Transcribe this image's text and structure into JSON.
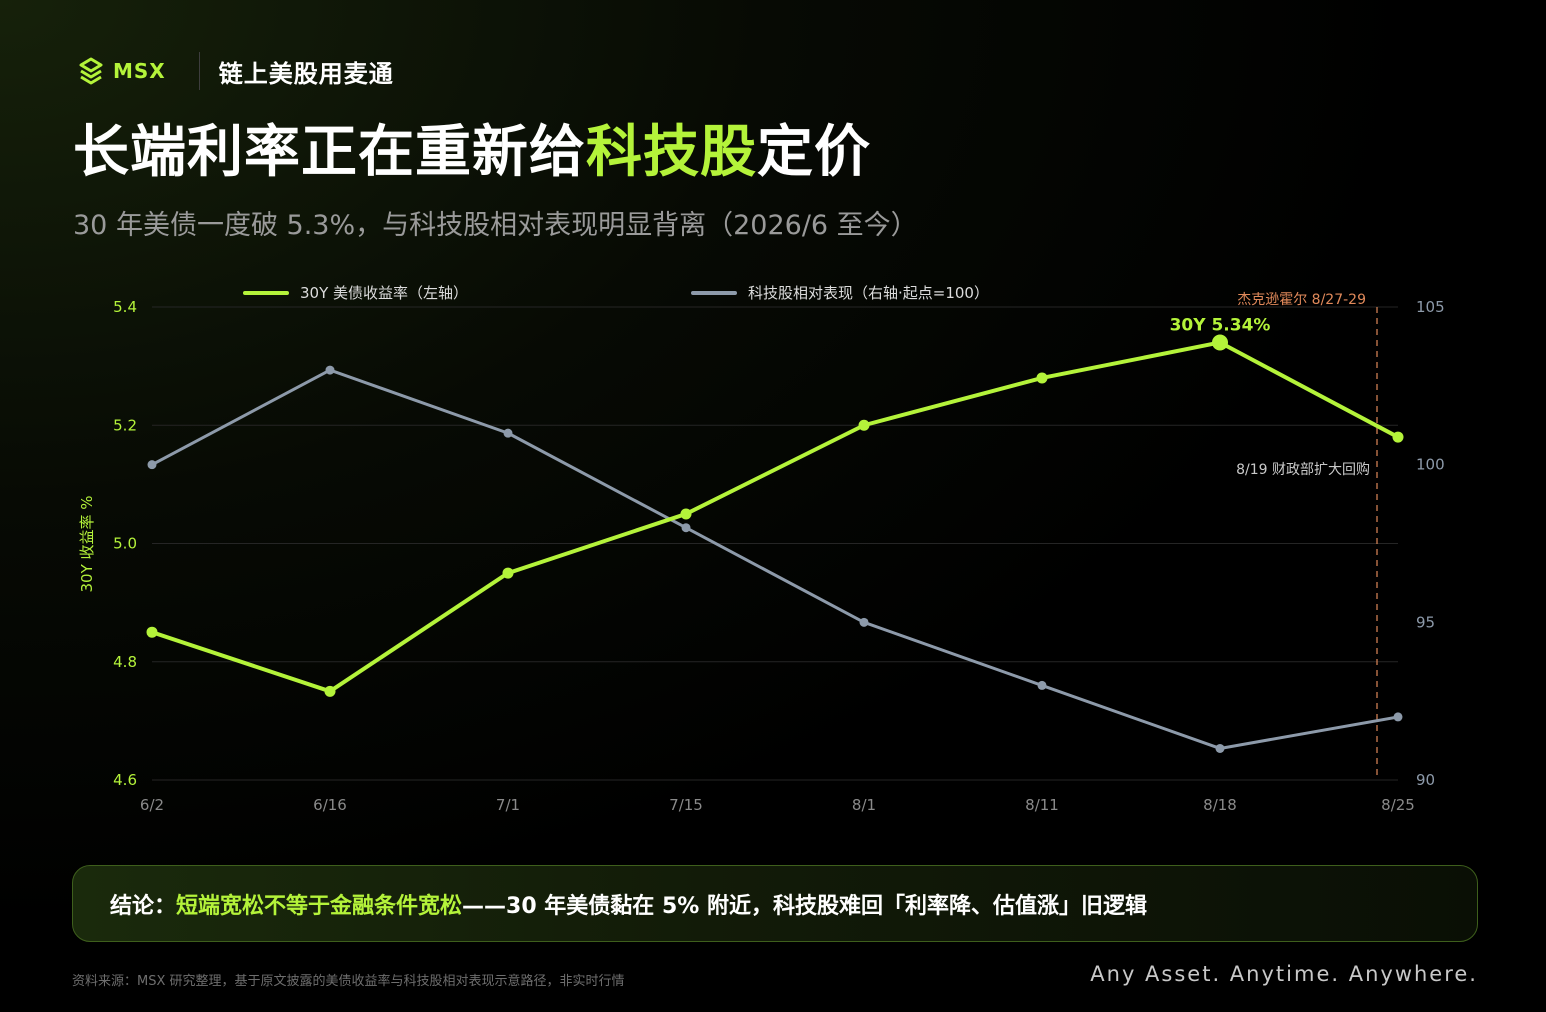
{
  "brand": {
    "logo": "msx-logo-icon",
    "name": "MSX",
    "tagline": "链上美股用麦通",
    "accent_color": "#b4f33a"
  },
  "title": {
    "prefix": "长端利率正在重新给",
    "highlight": "科技股",
    "suffix": "定价"
  },
  "subtitle": "30 年美债一度破 5.3%，与科技股相对表现明显背离（2026/6 至今）",
  "chart_data": {
    "type": "line",
    "categories": [
      "6/2",
      "6/16",
      "7/1",
      "7/15",
      "8/1",
      "8/11",
      "8/18",
      "8/25"
    ],
    "series": [
      {
        "name": "30Y 美债收益率（左轴）",
        "axis": "left",
        "color": "#b4f33a",
        "values": [
          4.85,
          4.75,
          4.95,
          5.05,
          5.2,
          5.28,
          5.34,
          5.18
        ]
      },
      {
        "name": "科技股相对表现（右轴·起点=100）",
        "axis": "right",
        "color": "#8d9aaa",
        "values": [
          100,
          103,
          101,
          98,
          95,
          93,
          91,
          92
        ]
      }
    ],
    "left_axis": {
      "label": "30Y 收益率 %",
      "ylim": [
        4.6,
        5.4
      ],
      "ticks": [
        "4.6",
        "4.8",
        "5.0",
        "5.2",
        "5.4"
      ]
    },
    "right_axis": {
      "label": "",
      "ylim": [
        90,
        105
      ],
      "ticks": [
        "90",
        "95",
        "100",
        "105"
      ]
    },
    "grid": true,
    "legend_position": "top",
    "annotations": {
      "peak_label": "30Y 5.34%",
      "event_line_category": "8/25",
      "event_line_label": "杰克逊霍尔 8/27-29",
      "event_line_color": "#e0895a",
      "note": "8/19 财政部扩大回购"
    }
  },
  "conclusion": {
    "label": "结论：",
    "highlight": "短端宽松不等于金融条件宽松",
    "rest": "——30 年美债黏在 5% 附近，科技股难回「利率降、估值涨」旧逻辑"
  },
  "footer": {
    "source": "资料来源：MSX 研究整理，基于原文披露的美债收益率与科技股相对表现示意路径，非实时行情",
    "slogan": "Any Asset. Anytime. Anywhere."
  }
}
